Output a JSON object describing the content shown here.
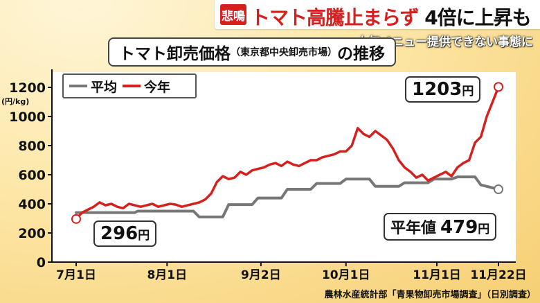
{
  "headline": {
    "tag": "悲鳴",
    "text_red": "トマト高騰止まらず",
    "text_black": "4倍に上昇も"
  },
  "subhead": "人気メニュー提供できない事態に",
  "chart_title": {
    "main": "トマト卸売価格",
    "market": "（東京都中央卸売市場）",
    "suffix": "の推移"
  },
  "chart_data": {
    "type": "line",
    "unit_label": "(円/kg)",
    "ylim": [
      0,
      1300
    ],
    "yticks": [
      "0",
      "200",
      "400",
      "600",
      "800",
      "1000",
      "1200"
    ],
    "x_tick_labels": [
      "7月1日",
      "8月1日",
      "9月2日",
      "10月1日",
      "11月1日",
      "11月22日"
    ],
    "x_tick_days": [
      0,
      31,
      63,
      92,
      123,
      144
    ],
    "legend_position": "top-left",
    "series": [
      {
        "name": "平均",
        "color": "#777777",
        "x": [
          0,
          20,
          21,
          40,
          42,
          50,
          52,
          60,
          62,
          70,
          72,
          80,
          82,
          90,
          92,
          100,
          102,
          110,
          112,
          120,
          122,
          128,
          130,
          136,
          138,
          144
        ],
        "values": [
          340,
          340,
          350,
          350,
          310,
          310,
          395,
          395,
          440,
          440,
          500,
          500,
          540,
          540,
          570,
          570,
          520,
          520,
          545,
          545,
          570,
          570,
          585,
          585,
          530,
          500
        ]
      },
      {
        "name": "今年",
        "color": "#d5201e",
        "x": [
          0,
          2,
          4,
          6,
          8,
          10,
          12,
          14,
          16,
          18,
          20,
          22,
          24,
          26,
          28,
          30,
          32,
          34,
          36,
          38,
          40,
          42,
          44,
          46,
          48,
          50,
          52,
          54,
          56,
          58,
          60,
          62,
          64,
          66,
          68,
          70,
          72,
          74,
          76,
          78,
          80,
          82,
          84,
          86,
          88,
          90,
          92,
          94,
          96,
          98,
          100,
          102,
          104,
          106,
          108,
          110,
          112,
          114,
          116,
          118,
          120,
          122,
          124,
          126,
          128,
          130,
          132,
          134,
          136,
          138,
          140,
          142,
          144
        ],
        "values": [
          296,
          340,
          360,
          380,
          410,
          390,
          400,
          380,
          370,
          400,
          390,
          380,
          390,
          400,
          380,
          390,
          400,
          395,
          380,
          390,
          400,
          410,
          430,
          470,
          550,
          590,
          570,
          580,
          620,
          600,
          630,
          640,
          650,
          670,
          680,
          660,
          690,
          670,
          660,
          680,
          700,
          700,
          720,
          730,
          740,
          760,
          760,
          800,
          920,
          880,
          860,
          900,
          870,
          840,
          780,
          700,
          650,
          620,
          580,
          600,
          560,
          580,
          600,
          620,
          590,
          650,
          680,
          700,
          820,
          860,
          1000,
          1100,
          1203
        ]
      }
    ],
    "annotations": [
      {
        "label": "",
        "value": "296",
        "unit": "円"
      },
      {
        "label": "",
        "value": "1203",
        "unit": "円"
      },
      {
        "label": "平年値",
        "value": "479",
        "unit": "円"
      }
    ]
  },
  "source": "農林水産統計部「青果物卸売市場調査」（日別調査）"
}
